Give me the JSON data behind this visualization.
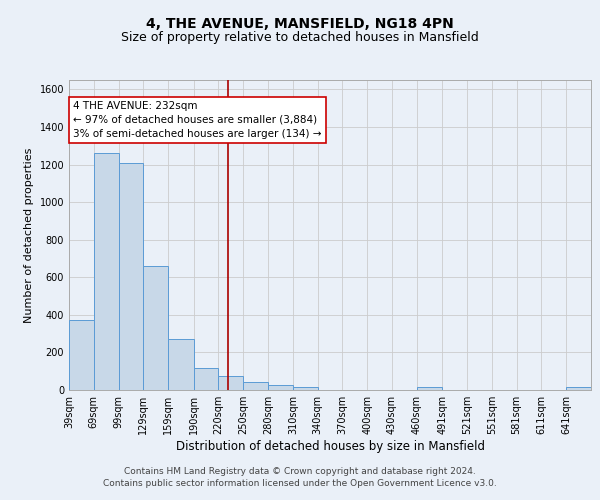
{
  "title": "4, THE AVENUE, MANSFIELD, NG18 4PN",
  "subtitle": "Size of property relative to detached houses in Mansfield",
  "xlabel": "Distribution of detached houses by size in Mansfield",
  "ylabel": "Number of detached properties",
  "bar_edges": [
    39,
    69,
    99,
    129,
    159,
    190,
    220,
    250,
    280,
    310,
    340,
    370,
    400,
    430,
    460,
    491,
    521,
    551,
    581,
    611,
    641,
    671
  ],
  "bar_heights": [
    370,
    1260,
    1210,
    660,
    270,
    115,
    75,
    40,
    25,
    15,
    0,
    0,
    0,
    0,
    18,
    0,
    0,
    0,
    0,
    0,
    15
  ],
  "bar_labels": [
    "39sqm",
    "69sqm",
    "99sqm",
    "129sqm",
    "159sqm",
    "190sqm",
    "220sqm",
    "250sqm",
    "280sqm",
    "310sqm",
    "340sqm",
    "370sqm",
    "400sqm",
    "430sqm",
    "460sqm",
    "491sqm",
    "521sqm",
    "551sqm",
    "581sqm",
    "611sqm",
    "641sqm"
  ],
  "ylim": [
    0,
    1650
  ],
  "yticks": [
    0,
    200,
    400,
    600,
    800,
    1000,
    1200,
    1400,
    1600
  ],
  "bar_fill": "#c8d8e8",
  "bar_edge_color": "#5b9bd5",
  "grid_color": "#cccccc",
  "bg_color": "#eaf0f8",
  "property_size": 232,
  "vline_color": "#aa0000",
  "annotation_title": "4 THE AVENUE: 232sqm",
  "annotation_line1": "← 97% of detached houses are smaller (3,884)",
  "annotation_line2": "3% of semi-detached houses are larger (134) →",
  "annotation_box_color": "#ffffff",
  "annotation_box_edge": "#cc0000",
  "footer_line1": "Contains HM Land Registry data © Crown copyright and database right 2024.",
  "footer_line2": "Contains public sector information licensed under the Open Government Licence v3.0.",
  "title_fontsize": 10,
  "subtitle_fontsize": 9,
  "xlabel_fontsize": 8.5,
  "ylabel_fontsize": 8,
  "tick_fontsize": 7,
  "footer_fontsize": 6.5,
  "annot_fontsize": 7.5
}
